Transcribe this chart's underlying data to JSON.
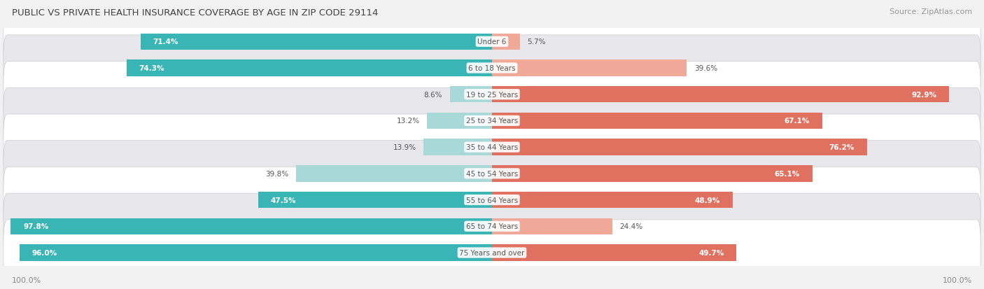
{
  "title": "PUBLIC VS PRIVATE HEALTH INSURANCE COVERAGE BY AGE IN ZIP CODE 29114",
  "source": "Source: ZipAtlas.com",
  "categories": [
    "Under 6",
    "6 to 18 Years",
    "19 to 25 Years",
    "25 to 34 Years",
    "35 to 44 Years",
    "45 to 54 Years",
    "55 to 64 Years",
    "65 to 74 Years",
    "75 Years and over"
  ],
  "public_values": [
    71.4,
    74.3,
    8.6,
    13.2,
    13.9,
    39.8,
    47.5,
    97.8,
    96.0
  ],
  "private_values": [
    5.7,
    39.6,
    92.9,
    67.1,
    76.2,
    65.1,
    48.9,
    24.4,
    49.7
  ],
  "public_color_strong": "#3ab5b5",
  "public_color_light": "#a8d8d8",
  "private_color_strong": "#e07060",
  "private_color_light": "#f0a898",
  "bg_color": "#f2f2f2",
  "row_bg_color": "#ffffff",
  "row_stripe_color": "#e8e8ec",
  "max_value": 100.0,
  "pub_label_threshold": 40.0,
  "priv_label_threshold": 40.0
}
